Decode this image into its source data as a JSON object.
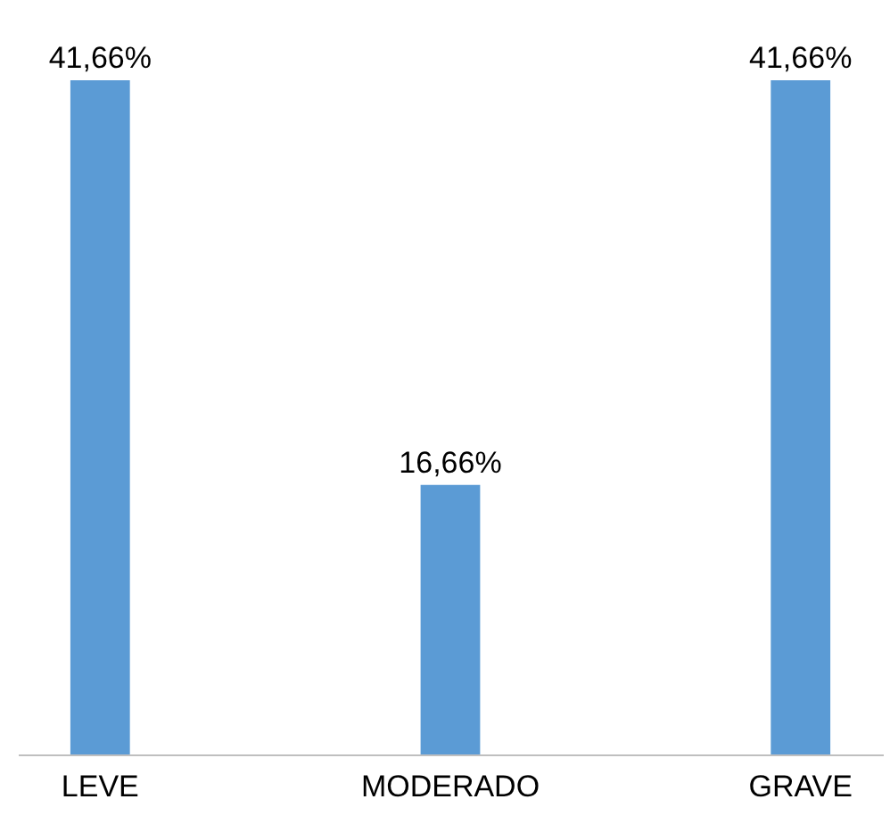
{
  "chart_data": {
    "type": "bar",
    "categories": [
      "LEVE",
      "MODERADO",
      "GRAVE"
    ],
    "values": [
      41.66,
      16.66,
      41.66
    ],
    "value_labels": [
      "41,66%",
      "16,66%",
      "41,66%"
    ],
    "color": "#5b9bd5"
  }
}
